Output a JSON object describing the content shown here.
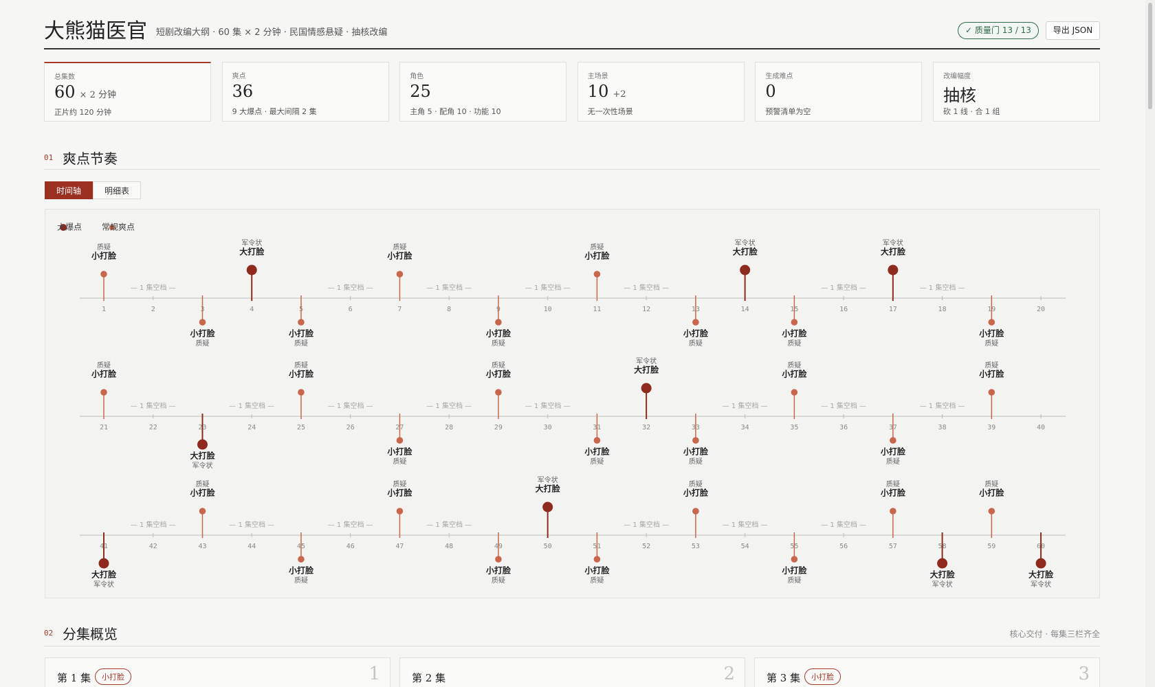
{
  "header": {
    "title": "大熊猫医官",
    "subtitle": "短剧改编大纲 · 60 集 × 2 分钟 · 民国情感悬疑 · 抽核改编",
    "badge": "✓ 质量门 13 / 13",
    "button": "导出 JSON"
  },
  "stats": [
    {
      "label": "总集数",
      "value": 60,
      "unit": "× 2 分钟",
      "note": "正片约 120 分钟"
    },
    {
      "label": "爽点",
      "value": 36,
      "note": "9 大爆点 · 最大间隔 2 集"
    },
    {
      "label": "角色",
      "value": 25,
      "note": "主角 5 · 配角 10 · 功能 10"
    },
    {
      "label": "主场景",
      "value": 10,
      "unit": "+2",
      "note": "无一次性场景"
    },
    {
      "label": "生成难点",
      "value": 0,
      "note": "预警清单为空"
    },
    {
      "label": "改编幅度",
      "value": "抽核",
      "note": "砍 1 线 · 合 1 组"
    }
  ],
  "section1": {
    "num": "01",
    "title": "爽点节奏",
    "tabs": [
      "时间轴",
      "明细表"
    ]
  },
  "timeline": {
    "legend": {
      "big": {
        "name": "大爆点",
        "color": "#8e2a1e"
      },
      "small": {
        "name": "常规爽点",
        "color": "#c9674c"
      }
    },
    "episodes": [
      {
        "n": 1,
        "kind": "small",
        "side": "up",
        "label": "小打脸",
        "tag": "质疑"
      },
      {
        "n": 2,
        "gap": "— 1 集空档 —"
      },
      {
        "n": 3,
        "kind": "small",
        "side": "down",
        "label": "小打脸",
        "tag": "质疑"
      },
      {
        "n": 4,
        "kind": "big",
        "side": "up",
        "label": "大打脸",
        "tag": "军令状"
      },
      {
        "n": 5,
        "kind": "small",
        "side": "down",
        "label": "小打脸",
        "tag": "质疑"
      },
      {
        "n": 6,
        "gap": "— 1 集空档 —"
      },
      {
        "n": 7,
        "kind": "small",
        "side": "up",
        "label": "小打脸",
        "tag": "质疑"
      },
      {
        "n": 8,
        "gap": "— 1 集空档 —"
      },
      {
        "n": 9,
        "kind": "small",
        "side": "down",
        "label": "小打脸",
        "tag": "质疑"
      },
      {
        "n": 10,
        "gap": "— 1 集空档 —"
      },
      {
        "n": 11,
        "kind": "small",
        "side": "up",
        "label": "小打脸",
        "tag": "质疑"
      },
      {
        "n": 12,
        "gap": "— 1 集空档 —"
      },
      {
        "n": 13,
        "kind": "small",
        "side": "down",
        "label": "小打脸",
        "tag": "质疑"
      },
      {
        "n": 14,
        "kind": "big",
        "side": "up",
        "label": "大打脸",
        "tag": "军令状"
      },
      {
        "n": 15,
        "kind": "small",
        "side": "down",
        "label": "小打脸",
        "tag": "质疑"
      },
      {
        "n": 16,
        "gap": "— 1 集空档 —"
      },
      {
        "n": 17,
        "kind": "big",
        "side": "up",
        "label": "大打脸",
        "tag": "军令状"
      },
      {
        "n": 18,
        "gap": "— 1 集空档 —"
      },
      {
        "n": 19,
        "kind": "small",
        "side": "down",
        "label": "小打脸",
        "tag": "质疑"
      },
      {
        "n": 20
      },
      {
        "n": 21,
        "kind": "small",
        "side": "up",
        "label": "小打脸",
        "tag": "质疑"
      },
      {
        "n": 22,
        "gap": "— 1 集空档 —"
      },
      {
        "n": 23,
        "kind": "big",
        "side": "down",
        "label": "大打脸",
        "tag": "军令状"
      },
      {
        "n": 24,
        "gap": "— 1 集空档 —"
      },
      {
        "n": 25,
        "kind": "small",
        "side": "up",
        "label": "小打脸",
        "tag": "质疑"
      },
      {
        "n": 26,
        "gap": "— 1 集空档 —"
      },
      {
        "n": 27,
        "kind": "small",
        "side": "down",
        "label": "小打脸",
        "tag": "质疑"
      },
      {
        "n": 28,
        "gap": "— 1 集空档 —"
      },
      {
        "n": 29,
        "kind": "small",
        "side": "up",
        "label": "小打脸",
        "tag": "质疑"
      },
      {
        "n": 30,
        "gap": "— 1 集空档 —"
      },
      {
        "n": 31,
        "kind": "small",
        "side": "down",
        "label": "小打脸",
        "tag": "质疑"
      },
      {
        "n": 32,
        "kind": "big",
        "side": "up",
        "label": "大打脸",
        "tag": "军令状"
      },
      {
        "n": 33,
        "kind": "small",
        "side": "down",
        "label": "小打脸",
        "tag": "质疑"
      },
      {
        "n": 34,
        "gap": "— 1 集空档 —"
      },
      {
        "n": 35,
        "kind": "small",
        "side": "up",
        "label": "小打脸",
        "tag": "质疑"
      },
      {
        "n": 36,
        "gap": "— 1 集空档 —"
      },
      {
        "n": 37,
        "kind": "small",
        "side": "down",
        "label": "小打脸",
        "tag": "质疑"
      },
      {
        "n": 38,
        "gap": "— 1 集空档 —"
      },
      {
        "n": 39,
        "kind": "small",
        "side": "up",
        "label": "小打脸",
        "tag": "质疑"
      },
      {
        "n": 40
      },
      {
        "n": 41,
        "kind": "big",
        "side": "down",
        "label": "大打脸",
        "tag": "军令状"
      },
      {
        "n": 42,
        "gap": "— 1 集空档 —"
      },
      {
        "n": 43,
        "kind": "small",
        "side": "up",
        "label": "小打脸",
        "tag": "质疑"
      },
      {
        "n": 44,
        "gap": "— 1 集空档 —"
      },
      {
        "n": 45,
        "kind": "small",
        "side": "down",
        "label": "小打脸",
        "tag": "质疑"
      },
      {
        "n": 46,
        "gap": "— 1 集空档 —"
      },
      {
        "n": 47,
        "kind": "small",
        "side": "up",
        "label": "小打脸",
        "tag": "质疑"
      },
      {
        "n": 48,
        "gap": "— 1 集空档 —"
      },
      {
        "n": 49,
        "kind": "small",
        "side": "down",
        "label": "小打脸",
        "tag": "质疑"
      },
      {
        "n": 50,
        "kind": "big",
        "side": "up",
        "label": "大打脸",
        "tag": "军令状"
      },
      {
        "n": 51,
        "kind": "small",
        "side": "down",
        "label": "小打脸",
        "tag": "质疑"
      },
      {
        "n": 52,
        "gap": "— 1 集空档 —"
      },
      {
        "n": 53,
        "kind": "small",
        "side": "up",
        "label": "小打脸",
        "tag": "质疑"
      },
      {
        "n": 54,
        "gap": "— 1 集空档 —"
      },
      {
        "n": 55,
        "kind": "small",
        "side": "down",
        "label": "小打脸",
        "tag": "质疑"
      },
      {
        "n": 56,
        "gap": "— 1 集空档 —"
      },
      {
        "n": 57,
        "kind": "small",
        "side": "up",
        "label": "小打脸",
        "tag": "质疑"
      },
      {
        "n": 58,
        "kind": "big",
        "side": "down",
        "label": "大打脸",
        "tag": "军令状"
      },
      {
        "n": 59,
        "kind": "small",
        "side": "up",
        "label": "小打脸",
        "tag": "质疑"
      },
      {
        "n": 60,
        "kind": "big",
        "side": "down",
        "label": "大打脸",
        "tag": "军令状"
      }
    ]
  },
  "section2": {
    "num": "02",
    "title": "分集概览",
    "note": "核心交付 · 每集三栏齐全"
  },
  "episode_cards": [
    {
      "title": "第 1 集",
      "badge": "小打脸",
      "num": "1"
    },
    {
      "title": "第 2 集",
      "num": "2"
    },
    {
      "title": "第 3 集",
      "badge": "小打脸",
      "num": "3"
    }
  ]
}
